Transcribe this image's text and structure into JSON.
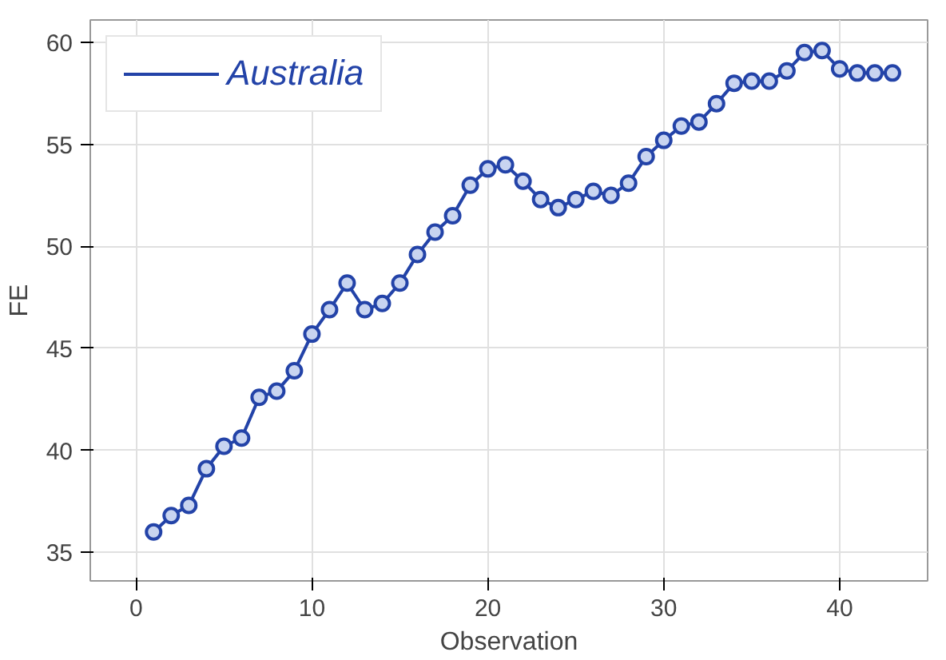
{
  "chart_data": {
    "type": "line",
    "xlabel": "Observation",
    "ylabel": "FE",
    "x": [
      1,
      2,
      3,
      4,
      5,
      6,
      7,
      8,
      9,
      10,
      11,
      12,
      13,
      14,
      15,
      16,
      17,
      18,
      19,
      20,
      21,
      22,
      23,
      24,
      25,
      26,
      27,
      28,
      29,
      30,
      31,
      32,
      33,
      34,
      35,
      36,
      37,
      38,
      39,
      40,
      41,
      42,
      43
    ],
    "series": [
      {
        "name": "Australia",
        "color": "#2343a8",
        "values": [
          36.0,
          36.8,
          37.3,
          39.1,
          40.2,
          40.6,
          42.6,
          42.9,
          43.9,
          45.7,
          46.9,
          48.2,
          46.9,
          47.2,
          48.2,
          49.6,
          50.7,
          51.5,
          53.0,
          53.8,
          54.0,
          53.2,
          52.3,
          51.9,
          52.3,
          52.7,
          52.5,
          53.1,
          54.4,
          55.2,
          55.9,
          56.1,
          57.0,
          58.0,
          58.1,
          58.1,
          58.6,
          59.5,
          59.6,
          58.7,
          58.5,
          58.5,
          58.5
        ]
      }
    ],
    "xlim": [
      -2.6,
      45
    ],
    "ylim": [
      33.6,
      61.1
    ],
    "xticks": [
      0,
      10,
      20,
      30,
      40
    ],
    "yticks": [
      35,
      40,
      45,
      50,
      55,
      60
    ],
    "grid": true,
    "legend": "top left",
    "marker": "circle",
    "line_style": "solid"
  }
}
